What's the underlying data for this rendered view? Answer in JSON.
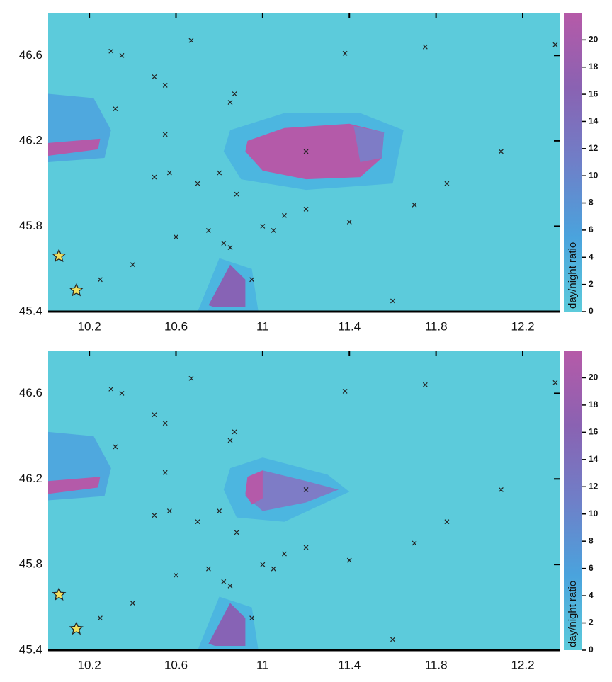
{
  "chart_data": [
    {
      "type": "heatmap-scatter",
      "xlim": [
        10.01,
        12.37
      ],
      "xticks": [
        10.2,
        10.6,
        11.0,
        11.4,
        11.8,
        12.2
      ],
      "ylim": [
        45.4,
        46.8
      ],
      "yticks": [
        45.4,
        45.8,
        46.2,
        46.6
      ],
      "colorbar_label": "day/night ratio",
      "clim": [
        0,
        22
      ],
      "colorbar_ticks": [
        0,
        2,
        4,
        6,
        8,
        10,
        12,
        14,
        16,
        18,
        20
      ],
      "colormap": [
        "#5ccbdb",
        "#4aa3dd",
        "#6f7fc8",
        "#8a62b2",
        "#b65aa8"
      ],
      "marker_color": "#222222",
      "x": [
        10.3,
        10.35,
        10.5,
        10.55,
        10.67,
        10.85,
        10.87,
        10.32,
        10.55,
        10.5,
        10.57,
        10.7,
        10.8,
        10.88,
        10.75,
        10.82,
        10.85,
        10.6,
        11.0,
        11.05,
        11.1,
        11.2,
        11.4,
        11.7,
        11.85,
        12.1,
        12.35,
        11.38,
        11.75,
        10.95,
        10.25,
        10.4,
        11.6,
        11.2
      ],
      "y": [
        46.62,
        46.6,
        46.5,
        46.46,
        46.67,
        46.38,
        46.42,
        46.35,
        46.23,
        46.03,
        46.05,
        46.0,
        46.05,
        45.95,
        45.78,
        45.72,
        45.7,
        45.75,
        45.8,
        45.78,
        45.85,
        45.88,
        45.82,
        45.9,
        46.0,
        46.15,
        46.65,
        46.61,
        46.64,
        45.55,
        45.55,
        45.62,
        45.45,
        46.15
      ],
      "highlight_color": "#f0e060",
      "highlight_x": [
        10.06,
        10.14
      ],
      "highlight_y": [
        45.66,
        45.5
      ]
    },
    {
      "type": "heatmap-scatter",
      "xlim": [
        10.01,
        12.37
      ],
      "xticks": [
        10.2,
        10.6,
        11.0,
        11.4,
        11.8,
        12.2
      ],
      "ylim": [
        45.4,
        46.8
      ],
      "yticks": [
        45.4,
        45.8,
        46.2,
        46.6
      ],
      "colorbar_label": "day/night ratio",
      "clim": [
        0,
        22
      ],
      "colorbar_ticks": [
        0,
        2,
        4,
        6,
        8,
        10,
        12,
        14,
        16,
        18,
        20
      ],
      "colormap": [
        "#5ccbdb",
        "#4aa3dd",
        "#6f7fc8",
        "#8a62b2",
        "#b65aa8"
      ],
      "marker_color": "#222222",
      "x": [
        10.3,
        10.35,
        10.5,
        10.55,
        10.67,
        10.85,
        10.87,
        10.32,
        10.55,
        10.5,
        10.57,
        10.7,
        10.8,
        10.88,
        10.75,
        10.82,
        10.85,
        10.6,
        11.0,
        11.05,
        11.1,
        11.2,
        11.4,
        11.7,
        11.85,
        12.1,
        12.35,
        11.38,
        11.75,
        10.95,
        10.25,
        10.4,
        11.6,
        11.2
      ],
      "y": [
        46.62,
        46.6,
        46.5,
        46.46,
        46.67,
        46.38,
        46.42,
        46.35,
        46.23,
        46.03,
        46.05,
        46.0,
        46.05,
        45.95,
        45.78,
        45.72,
        45.7,
        45.75,
        45.8,
        45.78,
        45.85,
        45.88,
        45.82,
        45.9,
        46.0,
        46.15,
        46.65,
        46.61,
        46.64,
        45.55,
        45.55,
        45.62,
        45.45,
        46.15
      ],
      "highlight_color": "#f0e060",
      "highlight_x": [
        10.06,
        10.14
      ],
      "highlight_y": [
        45.66,
        45.5
      ]
    }
  ]
}
